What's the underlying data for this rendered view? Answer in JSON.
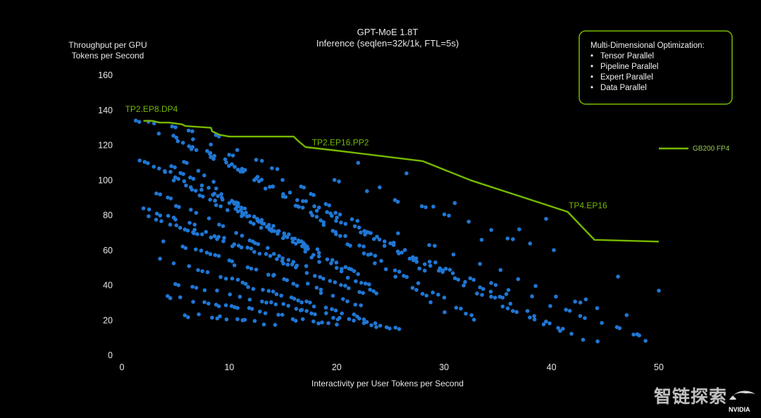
{
  "chart_data": {
    "type": "scatter",
    "title": "GPT-MoE 1.8T",
    "subtitle": "Inference (seqlen=32k/1k, FTL=5s)",
    "ylabel": [
      "Throughput per GPU",
      "Tokens per Second"
    ],
    "xlabel": "Interactivity per User Tokens per Second",
    "xlim": [
      0,
      50
    ],
    "ylim": [
      0,
      160
    ],
    "x_ticks": [
      "0",
      "10",
      "20",
      "30",
      "40",
      "50"
    ],
    "y_ticks": [
      "0",
      "20",
      "40",
      "60",
      "80",
      "100",
      "120",
      "140",
      "160"
    ],
    "grid": false,
    "scatter_color": "#1f77d4",
    "frontier": {
      "name": "GB200 FP4",
      "color": "#76b900",
      "x": [
        2.0,
        2.8,
        3.5,
        4.4,
        5.6,
        5.9,
        8.3,
        8.4,
        9.1,
        10.0,
        16.0,
        16.5,
        17.1,
        20.0,
        28.0,
        32.5,
        37.0,
        41.5,
        44.0,
        47.0,
        50.0
      ],
      "y": [
        134,
        134,
        133,
        133,
        132,
        131,
        130,
        128,
        126,
        125,
        125,
        122,
        119,
        117,
        111,
        100,
        91,
        82,
        66,
        65.5,
        65
      ]
    },
    "annotations": [
      {
        "text": "TP2.EP8.DP4",
        "x": 0.3,
        "y": 139
      },
      {
        "text": "TP2.EP16.PP2",
        "x": 17.7,
        "y": 120
      },
      {
        "text": "TP4.EP16",
        "x": 41.6,
        "y": 84
      }
    ],
    "legend": {
      "label": "GB200 FP4",
      "placement": "right"
    },
    "info_box": {
      "title": "Multi-Dimensional Optimization:",
      "items": [
        "Tensor Parallel",
        "Pipeline Parallel",
        "Expert Parallel",
        "Data Parallel"
      ]
    },
    "clusters": [
      {
        "x0": 1.3,
        "y0": 134,
        "x1": 43,
        "y1": 10,
        "n": 34
      },
      {
        "x0": 2.5,
        "y0": 133,
        "x1": 39,
        "y1": 18,
        "n": 28
      },
      {
        "x0": 4.5,
        "y0": 131,
        "x1": 33,
        "y1": 20,
        "n": 24
      },
      {
        "x0": 6.5,
        "y0": 129,
        "x1": 30,
        "y1": 25,
        "n": 20
      },
      {
        "x0": 9.0,
        "y0": 126,
        "x1": 28,
        "y1": 50,
        "n": 16
      },
      {
        "x0": 1.5,
        "y0": 112,
        "x1": 24,
        "y1": 36,
        "n": 30
      },
      {
        "x0": 2.5,
        "y0": 110,
        "x1": 22,
        "y1": 47,
        "n": 26
      },
      {
        "x0": 4.5,
        "y0": 108,
        "x1": 18,
        "y1": 58,
        "n": 20
      },
      {
        "x0": 6.0,
        "y0": 110,
        "x1": 14,
        "y1": 70,
        "n": 14
      },
      {
        "x0": 1.8,
        "y0": 85,
        "x1": 22,
        "y1": 36,
        "n": 26
      },
      {
        "x0": 3.0,
        "y0": 93,
        "x1": 17,
        "y1": 50,
        "n": 18
      },
      {
        "x0": 2.5,
        "y0": 79,
        "x1": 10,
        "y1": 63,
        "n": 12
      },
      {
        "x0": 4.0,
        "y0": 66,
        "x1": 22,
        "y1": 30,
        "n": 20
      },
      {
        "x0": 3.5,
        "y0": 56,
        "x1": 26,
        "y1": 14,
        "n": 26
      },
      {
        "x0": 5.0,
        "y0": 41,
        "x1": 24,
        "y1": 17,
        "n": 20
      },
      {
        "x0": 4.3,
        "y0": 34,
        "x1": 20,
        "y1": 17,
        "n": 18
      },
      {
        "x0": 6.0,
        "y0": 24,
        "x1": 14,
        "y1": 18,
        "n": 10
      },
      {
        "x0": 20,
        "y0": 100,
        "x1": 40,
        "y1": 60,
        "n": 10
      },
      {
        "x0": 26,
        "y0": 70,
        "x1": 44,
        "y1": 26,
        "n": 10
      },
      {
        "x0": 30,
        "y0": 50,
        "x1": 49,
        "y1": 9,
        "n": 12
      }
    ],
    "extra_points": [
      [
        22,
        110
      ],
      [
        26.5,
        104
      ],
      [
        24,
        96
      ],
      [
        29,
        85
      ],
      [
        31,
        87
      ],
      [
        37,
        72
      ],
      [
        39.5,
        78
      ],
      [
        48,
        12
      ],
      [
        50,
        37
      ],
      [
        46.2,
        45
      ],
      [
        47,
        23
      ],
      [
        44.3,
        8
      ],
      [
        43.2,
        32
      ],
      [
        40.8,
        14
      ],
      [
        35.8,
        35
      ],
      [
        33.5,
        66
      ]
    ]
  },
  "watermark": {
    "text": "智链探索",
    "brand": "NVIDIA"
  }
}
